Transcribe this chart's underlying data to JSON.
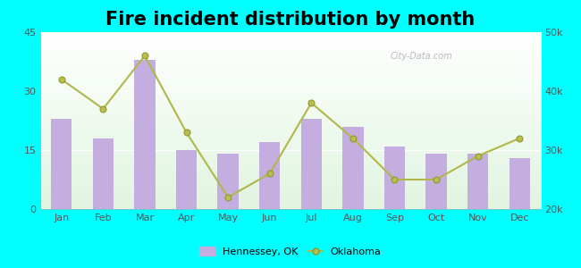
{
  "title": "Fire incident distribution by month",
  "months": [
    "Jan",
    "Feb",
    "Mar",
    "Apr",
    "May",
    "Jun",
    "Jul",
    "Aug",
    "Sep",
    "Oct",
    "Nov",
    "Dec"
  ],
  "hennessey_values": [
    23,
    18,
    38,
    15,
    14,
    17,
    23,
    21,
    16,
    14,
    14,
    13
  ],
  "oklahoma_values": [
    42000,
    37000,
    46000,
    33000,
    22000,
    26000,
    38000,
    32000,
    25000,
    25000,
    29000,
    32000
  ],
  "bar_color": "#c4aee0",
  "line_color": "#b0b84a",
  "line_marker_color": "#b8be50",
  "line_marker_edge": "#909830",
  "bg_color": "#00ffff",
  "left_ylim": [
    0,
    45
  ],
  "right_ylim": [
    20000,
    50000
  ],
  "left_yticks": [
    0,
    15,
    30,
    45
  ],
  "right_yticks": [
    20000,
    30000,
    40000,
    50000
  ],
  "right_yticklabels": [
    "20k",
    "30k",
    "40k",
    "50k"
  ],
  "title_fontsize": 15,
  "watermark": "City-Data.com"
}
